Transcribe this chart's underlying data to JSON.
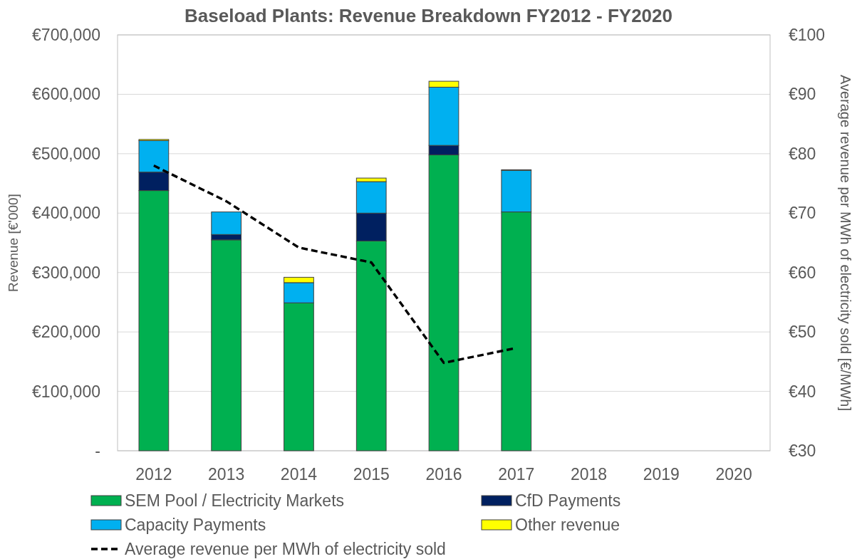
{
  "chart_data": {
    "type": "bar",
    "title": "Baseload Plants: Revenue Breakdown FY2012 - FY2020",
    "ylabel": "Revenue [€'000]",
    "y2label": "Average revenue per MWh of electricity sold [€/MWh]",
    "categories": [
      "2012",
      "2013",
      "2014",
      "2015",
      "2016",
      "2017",
      "2018",
      "2019",
      "2020"
    ],
    "stacked": true,
    "series": [
      {
        "name": "SEM Pool / Electricity Markets",
        "color": "#00b050",
        "values": [
          438000,
          355000,
          249000,
          353000,
          498000,
          402000,
          null,
          null,
          null
        ]
      },
      {
        "name": "CfD Payments",
        "color": "#002060",
        "values": [
          31000,
          9000,
          0,
          47000,
          16000,
          0,
          null,
          null,
          null
        ]
      },
      {
        "name": "Capacity Payments",
        "color": "#00b0f0",
        "values": [
          53000,
          38000,
          34000,
          53000,
          98000,
          70000,
          null,
          null,
          null
        ]
      },
      {
        "name": "Other revenue",
        "color": "#ffff00",
        "values": [
          2000,
          0,
          9000,
          6000,
          10000,
          1000,
          null,
          null,
          null
        ]
      },
      {
        "name": "Average revenue per MWh of electricity sold",
        "type": "line",
        "axis": "y2",
        "color": "#000000",
        "line_style": "dashed",
        "values": [
          78,
          72,
          64.2,
          61.7,
          44.8,
          47.3,
          null,
          null,
          null
        ]
      }
    ],
    "ylim": [
      0,
      700000
    ],
    "yticks": [
      {
        "value": 0,
        "label": "-"
      },
      {
        "value": 100000,
        "label": "€100,000"
      },
      {
        "value": 200000,
        "label": "€200,000"
      },
      {
        "value": 300000,
        "label": "€300,000"
      },
      {
        "value": 400000,
        "label": "€400,000"
      },
      {
        "value": 500000,
        "label": "€500,000"
      },
      {
        "value": 600000,
        "label": "€600,000"
      },
      {
        "value": 700000,
        "label": "€700,000"
      }
    ],
    "y2lim": [
      30,
      100
    ],
    "y2ticks": [
      {
        "value": 30,
        "label": "€30"
      },
      {
        "value": 40,
        "label": "€40"
      },
      {
        "value": 50,
        "label": "€50"
      },
      {
        "value": 60,
        "label": "€60"
      },
      {
        "value": 70,
        "label": "€70"
      },
      {
        "value": 80,
        "label": "€80"
      },
      {
        "value": 90,
        "label": "€90"
      },
      {
        "value": 100,
        "label": "€100"
      }
    ],
    "grid": "y",
    "legend": "bottom"
  }
}
